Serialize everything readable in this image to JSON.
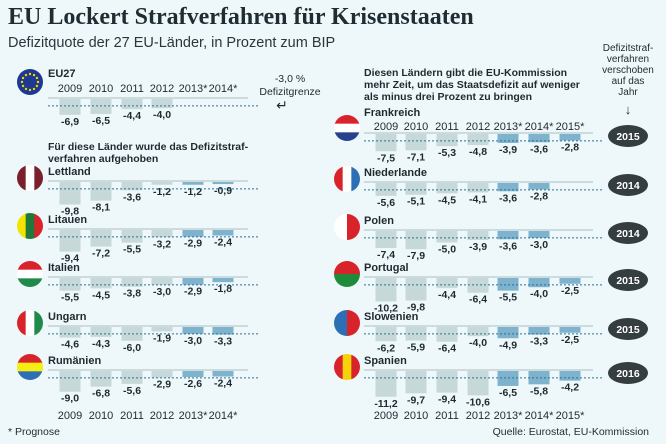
{
  "title": "EU Lockert Strafverfahren für Krisenstaaten",
  "subtitle": "Defizitquote der 27 EU-Länder, in Prozent zum BIP",
  "colors": {
    "actual_bar": "#c6d9d8",
    "forecast_bar": "#7eb2cd",
    "dotted_line": "#2c6f98",
    "badge": "#343d3f",
    "background": "#eef8fb"
  },
  "left_group_heading": [
    "Für diese Länder wurde das Defizitstraf-",
    "verfahren aufgehoben"
  ],
  "right_group_heading": [
    "Diesen Ländern gibt die EU-Kommission",
    "mehr Zeit, um das Staatsdefizit auf weniger",
    "als minus drei Prozent zu bringen"
  ],
  "threshold_note": {
    "value_label": "-3,0 %",
    "label": "Defizitgrenze",
    "icon": "return-arrow-icon"
  },
  "postponed_header": [
    "Defizitstraf-",
    "verfahren",
    "verschoben",
    "auf das",
    "Jahr"
  ],
  "footnote": "* Prognose",
  "source": "Quelle: Eurostat, EU-Kommission",
  "chart_data": {
    "type": "bar",
    "ylabel": "",
    "threshold": -3.0,
    "years_left": [
      "2009",
      "2010",
      "2011",
      "2012",
      "2013*",
      "2014*"
    ],
    "years_right": [
      "2009",
      "2010",
      "2011",
      "2012",
      "2013*",
      "2014*",
      "2015*"
    ],
    "forecast_years": [
      "2013*",
      "2014*",
      "2015*"
    ],
    "eu27": {
      "name": "EU27",
      "flag": "eu",
      "values": [
        -6.9,
        -6.5,
        -4.4,
        -4.0,
        null,
        null
      ],
      "labels": [
        "-6,9",
        "-6,5",
        "-4,4",
        "-4,0",
        "",
        ""
      ]
    },
    "lifted": [
      {
        "name": "Lettland",
        "flag": {
          "dir": "v",
          "stripes": [
            "#7a1f2b",
            "#ffffff",
            "#7a1f2b"
          ]
        },
        "values": [
          -9.8,
          -8.1,
          -3.6,
          -1.2,
          -1.2,
          -0.9
        ],
        "labels": [
          "-9,8",
          "-8,1",
          "-3,6",
          "-1,2",
          "-1,2",
          "-0,9"
        ]
      },
      {
        "name": "Litauen",
        "flag": {
          "dir": "v",
          "stripes": [
            "#f2e400",
            "#1f7a3a",
            "#d9232a"
          ]
        },
        "values": [
          -9.4,
          -7.2,
          -5.5,
          -3.2,
          -2.9,
          -2.4
        ],
        "labels": [
          "-9,4",
          "-7,2",
          "-5,5",
          "-3,2",
          "-2,9",
          "-2,4"
        ]
      },
      {
        "name": "Italien",
        "flag": {
          "dir": "h",
          "stripes": [
            "#d9232a",
            "#ffffff",
            "#1f8a4a"
          ]
        },
        "values": [
          -5.5,
          -4.5,
          -3.8,
          -3.0,
          -2.9,
          -1.8
        ],
        "labels": [
          "-5,5",
          "-4,5",
          "-3,8",
          "-3,0",
          "-2,9",
          "-1,8"
        ]
      },
      {
        "name": "Ungarn",
        "flag": {
          "dir": "v",
          "stripes": [
            "#d9232a",
            "#ffffff",
            "#1f8a4a"
          ]
        },
        "values": [
          -4.6,
          -4.3,
          -6.0,
          -1.9,
          -3.0,
          -3.3
        ],
        "labels": [
          "-4,6",
          "-4,3",
          "-6,0",
          "-1,9",
          "-3,0",
          "-3,3"
        ]
      },
      {
        "name": "Rumänien",
        "flag": {
          "dir": "h",
          "stripes": [
            "#d9232a",
            "#f5ee10",
            "#2d6fb5"
          ]
        },
        "values": [
          -9.0,
          -6.8,
          -5.6,
          -2.9,
          -2.6,
          -2.4
        ],
        "labels": [
          "-9,0",
          "-6,8",
          "-5,6",
          "-2,9",
          "-2,6",
          "-2,4"
        ]
      }
    ],
    "extended": [
      {
        "name": "Frankreich",
        "flag": {
          "dir": "h",
          "stripes": [
            "#d9232a",
            "#ffffff",
            "#27418f"
          ]
        },
        "values": [
          -7.5,
          -7.1,
          -5.3,
          -4.8,
          -3.9,
          -3.6,
          -2.8
        ],
        "labels": [
          "-7,5",
          "-7,1",
          "-5,3",
          "-4,8",
          "-3,9",
          "-3,6",
          "-2,8"
        ],
        "postponed_to": "2015"
      },
      {
        "name": "Niederlande",
        "flag": {
          "dir": "v",
          "stripes": [
            "#d9232a",
            "#ffffff",
            "#2d6fb5"
          ]
        },
        "values": [
          -5.6,
          -5.1,
          -4.5,
          -4.1,
          -3.6,
          -2.8,
          null
        ],
        "labels": [
          "-5,6",
          "-5,1",
          "-4,5",
          "-4,1",
          "-3,6",
          "-2,8",
          ""
        ],
        "postponed_to": "2014"
      },
      {
        "name": "Polen",
        "flag": {
          "dir": "v",
          "stripes": [
            "#ffffff",
            "#d9232a"
          ]
        },
        "values": [
          -7.4,
          -7.9,
          -5.0,
          -3.9,
          -3.6,
          -3.0,
          null
        ],
        "labels": [
          "-7,4",
          "-7,9",
          "-5,0",
          "-3,9",
          "-3,6",
          "-3,0",
          ""
        ],
        "postponed_to": "2014"
      },
      {
        "name": "Portugal",
        "flag": {
          "dir": "h",
          "stripes": [
            "#d9232a",
            "#1f8a3a"
          ]
        },
        "values": [
          -10.2,
          -9.8,
          -4.4,
          -6.4,
          -5.5,
          -4.0,
          -2.5
        ],
        "labels": [
          "-10,2",
          "-9,8",
          "-4,4",
          "-6,4",
          "-5,5",
          "-4,0",
          "-2,5"
        ],
        "postponed_to": "2015"
      },
      {
        "name": "Slowenien",
        "flag": {
          "dir": "v",
          "stripes": [
            "#2d6fb5",
            "#d9232a"
          ]
        },
        "values": [
          -6.2,
          -5.9,
          -6.4,
          -4.0,
          -4.9,
          -3.3,
          -2.5
        ],
        "labels": [
          "-6,2",
          "-5,9",
          "-6,4",
          "-4,0",
          "-4,9",
          "-3,3",
          "-2,5"
        ],
        "postponed_to": "2015"
      },
      {
        "name": "Spanien",
        "flag": {
          "dir": "v",
          "stripes": [
            "#d9232a",
            "#f5d20a",
            "#d9232a"
          ]
        },
        "values": [
          -11.2,
          -9.7,
          -9.4,
          -10.6,
          -6.5,
          -5.8,
          -4.2
        ],
        "labels": [
          "-11,2",
          "-9,7",
          "-9,4",
          "-10,6",
          "-6,5",
          "-5,8",
          "-4,2"
        ],
        "postponed_to": "2016"
      }
    ]
  }
}
